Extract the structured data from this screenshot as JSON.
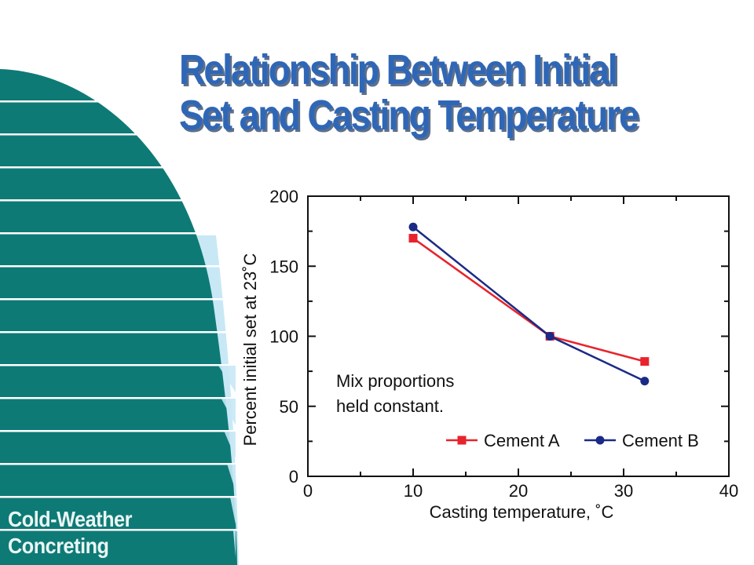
{
  "slide": {
    "title_line1": "Relationship Between Initial",
    "title_line2": "Set and Casting  Temperature",
    "footer_line1": "Cold-Weather",
    "footer_line2": "Concreting"
  },
  "theme": {
    "title_color": "#2f67b7",
    "decor_teal": "#0e7a76",
    "decor_light": "#c8e8f5",
    "cement_a_color": "#e8232c",
    "cement_b_color": "#1a2a86"
  },
  "chart_data": {
    "type": "line",
    "xlabel": "Casting temperature, ˚C",
    "ylabel": "Percent initial set at 23˚C",
    "xlim": [
      0,
      40
    ],
    "ylim": [
      0,
      200
    ],
    "x_ticks": [
      "0",
      "10",
      "20",
      "30",
      "40"
    ],
    "y_ticks": [
      "0",
      "50",
      "100",
      "150",
      "200"
    ],
    "annotation_line1": "Mix proportions",
    "annotation_line2": "held constant.",
    "legend_position": "bottom-right",
    "grid": false,
    "series": [
      {
        "name": "Cement A",
        "marker": "square",
        "color": "#e8232c",
        "x": [
          10,
          23,
          32
        ],
        "y": [
          170,
          100,
          82
        ]
      },
      {
        "name": "Cement B",
        "marker": "circle",
        "color": "#1a2a86",
        "x": [
          10,
          23,
          32
        ],
        "y": [
          178,
          100,
          68
        ]
      }
    ]
  }
}
